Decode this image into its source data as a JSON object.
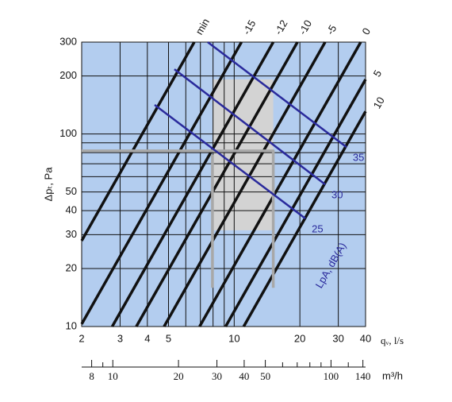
{
  "chart_data": {
    "type": "line",
    "xscale": "log",
    "yscale": "log",
    "xlim": [
      2,
      40
    ],
    "ylim": [
      10,
      300
    ],
    "xticks": [
      2,
      3,
      4,
      5,
      10,
      20,
      30,
      40
    ],
    "xgrid": [
      6,
      7,
      8,
      9
    ],
    "yticks": [
      10,
      20,
      30,
      40,
      50,
      100,
      200,
      300
    ],
    "ygrid": [
      60,
      70,
      80,
      90
    ],
    "xlabel": "qᵥ, l/s",
    "ylabel": "Δpₜ, Pa",
    "x2lim": [
      7.2,
      144
    ],
    "x2ticks": [
      8,
      10,
      20,
      30,
      40,
      50,
      100,
      140
    ],
    "x2minor": [
      9,
      60,
      70,
      80,
      90,
      120
    ],
    "x2label": "m³/h",
    "background": "#b3cdef",
    "region": {
      "x": [
        7.95,
        15.1
      ],
      "y": [
        31.6,
        192
      ],
      "color": "#d3d3d3"
    },
    "series_label": "LpA, dB(A)",
    "series": [
      {
        "name": "min",
        "color": "#111111",
        "x": [
          2,
          6.56
        ],
        "values": [
          27.9,
          300
        ]
      },
      {
        "name": "-15",
        "color": "#111111",
        "x": [
          2,
          10.8
        ],
        "values": [
          10.3,
          300
        ]
      },
      {
        "name": "-12",
        "color": "#111111",
        "x": [
          2.76,
          15.1
        ],
        "values": [
          10,
          300
        ]
      },
      {
        "name": "-10",
        "color": "#111111",
        "x": [
          3.56,
          19.5
        ],
        "values": [
          10,
          300
        ]
      },
      {
        "name": "-5",
        "color": "#111111",
        "x": [
          4.77,
          26.1
        ],
        "values": [
          10,
          300
        ]
      },
      {
        "name": "0",
        "color": "#111111",
        "x": [
          6.94,
          38
        ],
        "values": [
          10,
          300
        ]
      },
      {
        "name": "5",
        "color": "#111111",
        "x": [
          9.13,
          40
        ],
        "values": [
          10,
          192
        ]
      },
      {
        "name": "10",
        "color": "#111111",
        "x": [
          11.05,
          40
        ],
        "values": [
          10,
          131
        ]
      },
      {
        "color": "#a8a8a8",
        "x": [
          2,
          15.1,
          15.1
        ],
        "values": [
          81.7,
          81.7,
          15.9
        ]
      },
      {
        "color": "#a8a8a8",
        "x": [
          7.95,
          7.95
        ],
        "values": [
          78,
          15.9
        ]
      },
      {
        "name": "35",
        "color": "#2a2a9c",
        "x": [
          7.56,
          32.7
        ],
        "values": [
          300,
          85.5
        ]
      },
      {
        "name": "30",
        "color": "#2a2a9c",
        "x": [
          5.32,
          26.1
        ],
        "values": [
          217,
          54.7
        ]
      },
      {
        "name": "25",
        "color": "#2a2a9c",
        "x": [
          4.32,
          21.2
        ],
        "values": [
          141.6,
          36.4
        ]
      }
    ]
  }
}
